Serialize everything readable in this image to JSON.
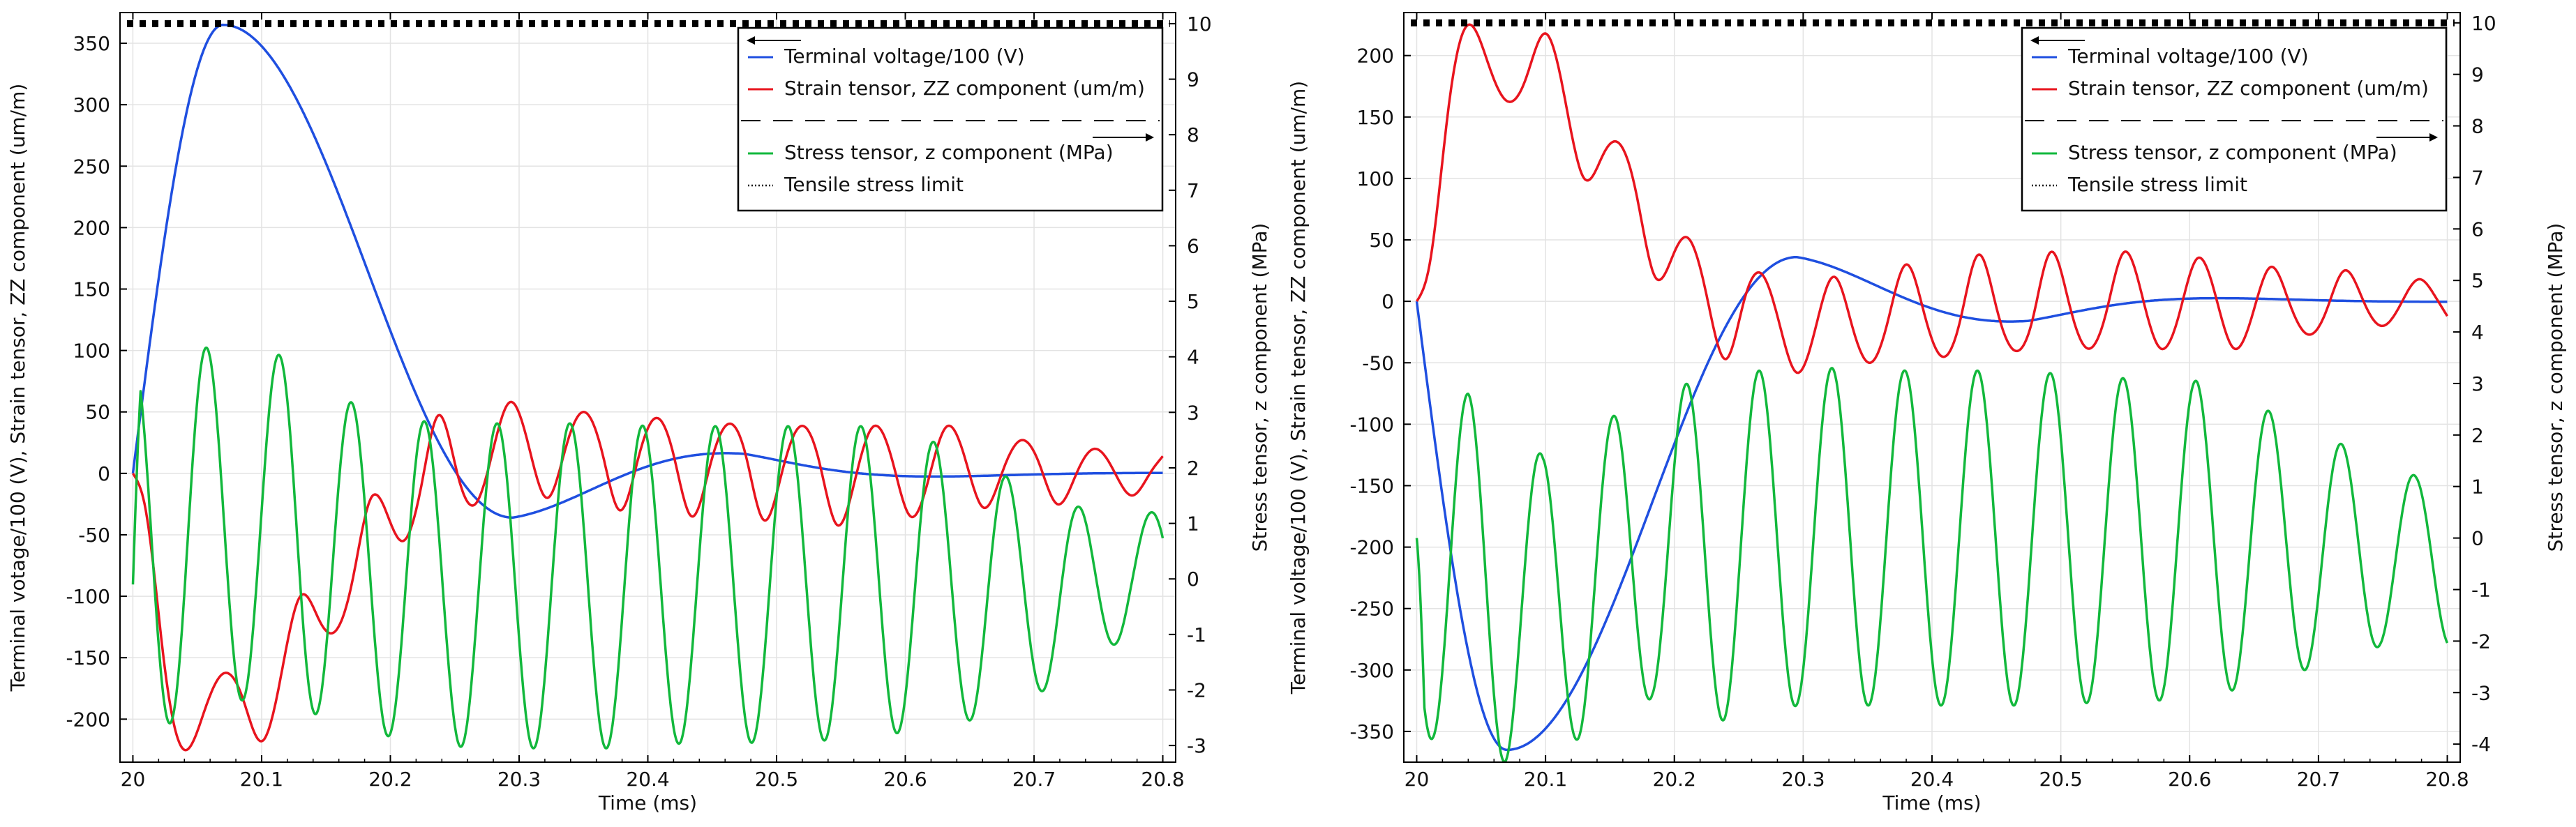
{
  "chart_data": [
    {
      "type": "line",
      "panel": "left",
      "xlabel": "Time (ms)",
      "ylabel": "Terminal votage/100 (V), Strain tensor, ZZ component (um/m)",
      "y2label": "Stress tensor, z component (MPa)",
      "xlim": [
        19.99,
        20.81
      ],
      "ylim": [
        -235,
        375
      ],
      "y2lim": [
        -3.3,
        10.2
      ],
      "xticks": [
        "20",
        "20.1",
        "20.2",
        "20.3",
        "20.4",
        "20.5",
        "20.6",
        "20.7",
        "20.8"
      ],
      "yticks": [
        "-200",
        "-150",
        "-100",
        "-50",
        "0",
        "50",
        "100",
        "150",
        "200",
        "250",
        "300",
        "350"
      ],
      "y2ticks": [
        "-3",
        "-2",
        "-1",
        "0",
        "1",
        "2",
        "3",
        "4",
        "5",
        "6",
        "7",
        "8",
        "9",
        "10"
      ],
      "grid": true,
      "legend_position": "top-right",
      "legend_left_axis": [
        "Terminal voltage/100 (V)",
        "Strain tensor, ZZ component (um/m)"
      ],
      "legend_right_axis": [
        "Stress tensor, z component (MPa)",
        "Tensile stress limit"
      ],
      "series": [
        {
          "name": "Terminal voltage/100 (V)",
          "axis": "left",
          "color": "#1f4fe0",
          "model": {
            "kind": "pulse",
            "amp": 365,
            "tpeak": 20.07,
            "u0": -36,
            "t0": 20.295,
            "swidth": 0.09,
            "tau": 0.22,
            "tend": 20.8
          }
        },
        {
          "name": "Strain tensor, ZZ component (um/m)",
          "axis": "left",
          "color": "#e8141e",
          "points": [
            [
              20.0,
              0
            ],
            [
              20.01,
              -30
            ],
            [
              20.025,
              -160
            ],
            [
              20.04,
              -225
            ],
            [
              20.055,
              -195
            ],
            [
              20.07,
              -163
            ],
            [
              20.085,
              -182
            ],
            [
              20.1,
              -218
            ],
            [
              20.115,
              -165
            ],
            [
              20.13,
              -100
            ],
            [
              20.145,
              -120
            ],
            [
              20.155,
              -130
            ],
            [
              20.17,
              -90
            ],
            [
              20.185,
              -20
            ],
            [
              20.2,
              -40
            ],
            [
              20.21,
              -55
            ],
            [
              20.225,
              -5
            ],
            [
              20.237,
              47
            ],
            [
              20.252,
              0
            ],
            [
              20.266,
              -25
            ],
            [
              20.28,
              20
            ],
            [
              20.293,
              58
            ],
            [
              20.308,
              20
            ],
            [
              20.322,
              -20
            ],
            [
              20.336,
              20
            ],
            [
              20.35,
              50
            ],
            [
              20.365,
              15
            ],
            [
              20.378,
              -30
            ],
            [
              20.392,
              10
            ],
            [
              20.406,
              45
            ],
            [
              20.42,
              15
            ],
            [
              20.434,
              -35
            ],
            [
              20.448,
              5
            ],
            [
              20.462,
              40
            ],
            [
              20.476,
              15
            ],
            [
              20.49,
              -38
            ],
            [
              20.504,
              0
            ],
            [
              20.518,
              38
            ],
            [
              20.533,
              10
            ],
            [
              20.547,
              -42
            ],
            [
              20.561,
              -5
            ],
            [
              20.575,
              38
            ],
            [
              20.59,
              10
            ],
            [
              20.604,
              -35
            ],
            [
              20.618,
              -5
            ],
            [
              20.632,
              38
            ],
            [
              20.647,
              10
            ],
            [
              20.661,
              -28
            ],
            [
              20.675,
              0
            ],
            [
              20.69,
              27
            ],
            [
              20.704,
              8
            ],
            [
              20.718,
              -25
            ],
            [
              20.733,
              0
            ],
            [
              20.747,
              20
            ],
            [
              20.762,
              2
            ],
            [
              20.776,
              -18
            ],
            [
              20.79,
              0
            ],
            [
              20.8,
              14
            ]
          ]
        },
        {
          "name": "Stress tensor, z component (MPa)",
          "axis": "right",
          "color": "#12b83c",
          "model": {
            "kind": "osc",
            "t0": 20.0,
            "tend": 20.8,
            "period": 0.0565,
            "phase": 0.0004,
            "c": 0.5,
            "v0": -0.1
          },
          "peaks": [
            [
              20.01,
              4.0
            ],
            [
              20.067,
              4.2
            ],
            [
              20.123,
              4.0
            ],
            [
              20.18,
              3.0
            ],
            [
              20.237,
              2.8
            ],
            [
              20.293,
              2.8
            ],
            [
              20.35,
              2.8
            ],
            [
              20.406,
              2.75
            ],
            [
              20.463,
              2.75
            ],
            [
              20.52,
              2.75
            ],
            [
              20.576,
              2.75
            ],
            [
              20.633,
              2.4
            ],
            [
              20.69,
              1.7
            ],
            [
              20.746,
              1.2
            ]
          ],
          "troughs": [
            [
              20.038,
              -2.6
            ],
            [
              20.095,
              -2.1
            ],
            [
              20.151,
              -2.5
            ],
            [
              20.208,
              -2.9
            ],
            [
              20.265,
              -3.05
            ],
            [
              20.321,
              -3.05
            ],
            [
              20.378,
              -3.05
            ],
            [
              20.434,
              -2.95
            ],
            [
              20.491,
              -2.95
            ],
            [
              20.548,
              -2.9
            ],
            [
              20.604,
              -2.75
            ],
            [
              20.661,
              -2.5
            ],
            [
              20.718,
              -1.9
            ],
            [
              20.774,
              -1.0
            ]
          ]
        },
        {
          "name": "Tensile stress limit",
          "axis": "right",
          "color": "#000000",
          "dash": "dotted",
          "constant": 10
        }
      ]
    },
    {
      "type": "line",
      "panel": "right",
      "xlabel": "Time (ms)",
      "ylabel": "Terminal voltage/100 (V), Strain tensor, ZZ component (um/m)",
      "y2label": "Stress tensor, z component (MPa)",
      "xlim": [
        19.99,
        20.81
      ],
      "ylim": [
        -375,
        235
      ],
      "y2lim": [
        -4.35,
        10.2
      ],
      "xticks": [
        "20",
        "20.1",
        "20.2",
        "20.3",
        "20.4",
        "20.5",
        "20.6",
        "20.7",
        "20.8"
      ],
      "yticks": [
        "-350",
        "-300",
        "-250",
        "-200",
        "-150",
        "-100",
        "-50",
        "0",
        "50",
        "100",
        "150",
        "200"
      ],
      "y2ticks": [
        "-4",
        "-3",
        "-2",
        "-1",
        "0",
        "1",
        "2",
        "3",
        "4",
        "5",
        "6",
        "7",
        "8",
        "9",
        "10"
      ],
      "grid": true,
      "legend_position": "top-right",
      "legend_left_axis": [
        "Terminal voltage/100 (V)",
        "Strain tensor, ZZ component (um/m)"
      ],
      "legend_right_axis": [
        "Stress tensor, z component (MPa)",
        "Tensile stress limit"
      ],
      "series": [
        {
          "name": "Terminal voltage/100 (V)",
          "axis": "left",
          "color": "#1f4fe0",
          "model": {
            "kind": "pulse",
            "amp": -365,
            "tpeak": 20.07,
            "u0": 36,
            "t0": 20.295,
            "swidth": 0.09,
            "tau": 0.22,
            "tend": 20.8
          }
        },
        {
          "name": "Strain tensor, ZZ component (um/m)",
          "axis": "left",
          "color": "#e8141e",
          "points": [
            [
              20.0,
              0
            ],
            [
              20.01,
              30
            ],
            [
              20.025,
              160
            ],
            [
              20.04,
              225
            ],
            [
              20.055,
              195
            ],
            [
              20.07,
              163
            ],
            [
              20.085,
              182
            ],
            [
              20.1,
              218
            ],
            [
              20.115,
              165
            ],
            [
              20.13,
              100
            ],
            [
              20.145,
              120
            ],
            [
              20.155,
              130
            ],
            [
              20.17,
              90
            ],
            [
              20.185,
              20
            ],
            [
              20.2,
              40
            ],
            [
              20.21,
              52
            ],
            [
              20.225,
              5
            ],
            [
              20.24,
              -47
            ],
            [
              20.254,
              0
            ],
            [
              20.267,
              23
            ],
            [
              20.282,
              -20
            ],
            [
              20.295,
              -58
            ],
            [
              20.31,
              -20
            ],
            [
              20.324,
              20
            ],
            [
              20.338,
              -20
            ],
            [
              20.352,
              -50
            ],
            [
              20.366,
              -15
            ],
            [
              20.38,
              30
            ],
            [
              20.394,
              -10
            ],
            [
              20.408,
              -45
            ],
            [
              20.422,
              -15
            ],
            [
              20.436,
              38
            ],
            [
              20.45,
              -5
            ],
            [
              20.464,
              -40
            ],
            [
              20.478,
              -15
            ],
            [
              20.492,
              40
            ],
            [
              20.506,
              0
            ],
            [
              20.52,
              -38
            ],
            [
              20.535,
              -10
            ],
            [
              20.549,
              40
            ],
            [
              20.563,
              5
            ],
            [
              20.577,
              -38
            ],
            [
              20.592,
              -10
            ],
            [
              20.606,
              35
            ],
            [
              20.62,
              5
            ],
            [
              20.634,
              -38
            ],
            [
              20.649,
              -10
            ],
            [
              20.663,
              28
            ],
            [
              20.677,
              0
            ],
            [
              20.692,
              -27
            ],
            [
              20.706,
              -8
            ],
            [
              20.72,
              25
            ],
            [
              20.735,
              0
            ],
            [
              20.749,
              -20
            ],
            [
              20.764,
              -2
            ],
            [
              20.778,
              18
            ],
            [
              20.79,
              5
            ],
            [
              20.8,
              -12
            ]
          ]
        },
        {
          "name": "Stress tensor, z component (MPa)",
          "axis": "right",
          "color": "#12b83c",
          "model": {
            "kind": "osc",
            "t0": 20.0,
            "tend": 20.8,
            "period": 0.0565,
            "phase": 0.0115,
            "c": -0.5,
            "v0": 0.0
          },
          "peaks": [
            [
              20.04,
              2.8
            ],
            [
              20.098,
              1.6
            ],
            [
              20.155,
              2.4
            ],
            [
              20.21,
              3.0
            ],
            [
              20.266,
              3.25
            ],
            [
              20.323,
              3.3
            ],
            [
              20.38,
              3.25
            ],
            [
              20.437,
              3.25
            ],
            [
              20.493,
              3.2
            ],
            [
              20.55,
              3.1
            ],
            [
              20.606,
              3.05
            ],
            [
              20.663,
              2.45
            ],
            [
              20.72,
              1.8
            ],
            [
              20.776,
              1.2
            ]
          ],
          "troughs": [
            [
              20.013,
              -3.9
            ],
            [
              20.069,
              -4.35
            ],
            [
              20.126,
              -3.9
            ],
            [
              20.183,
              -3.1
            ],
            [
              20.239,
              -3.55
            ],
            [
              20.296,
              -3.25
            ],
            [
              20.352,
              -3.25
            ],
            [
              20.409,
              -3.25
            ],
            [
              20.465,
              -3.25
            ],
            [
              20.522,
              -3.2
            ],
            [
              20.578,
              -3.15
            ],
            [
              20.635,
              -2.95
            ],
            [
              20.691,
              -2.55
            ],
            [
              20.748,
              -2.1
            ]
          ]
        },
        {
          "name": "Tensile stress limit",
          "axis": "right",
          "color": "#000000",
          "dash": "dotted",
          "constant": 10
        }
      ]
    }
  ]
}
